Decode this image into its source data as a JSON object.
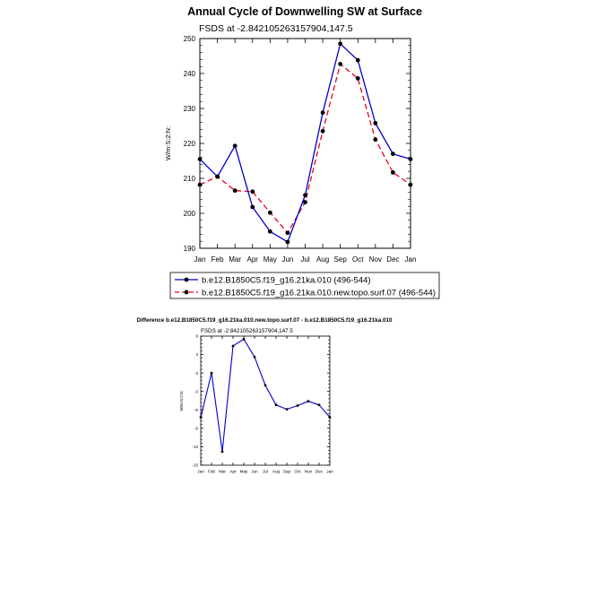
{
  "chart_data": [
    {
      "type": "line",
      "title": "Annual Cycle of Downwelling SW at Surface",
      "subtitle": "FSDS at -2.842105263157904,147.5",
      "ylabel": "W/m:S:2:N:",
      "xlabel": "",
      "categories": [
        "Jan",
        "Feb",
        "Mar",
        "Apr",
        "May",
        "Jun",
        "Jul",
        "Aug",
        "Sep",
        "Oct",
        "Nov",
        "Dec",
        "Jan"
      ],
      "ylim": [
        190,
        250
      ],
      "yticks": [
        190,
        200,
        210,
        220,
        230,
        240,
        250
      ],
      "grid": false,
      "legend_position": "bottom",
      "series": [
        {
          "name": "b.e12.B1850C5.f19_g16.21ka.010 (496-544)",
          "color": "#0000cc",
          "dash": "solid",
          "values": [
            215.5,
            210.5,
            219.3,
            201.8,
            194.8,
            191.8,
            205.2,
            228.8,
            248.5,
            243.8,
            225.8,
            217.0,
            215.5
          ]
        },
        {
          "name": "b.e12.B1850C5.f19_g16.21ka.010.new.topo.surf.07 (496-544)",
          "color": "#e8001c",
          "dash": "dashed",
          "values": [
            208.2,
            210.5,
            206.5,
            206.2,
            200.2,
            194.4,
            203.2,
            223.5,
            242.7,
            238.6,
            221.1,
            211.7,
            208.2
          ]
        }
      ]
    },
    {
      "type": "line",
      "title": "Difference b.e12.B1850C5.f19_g16.21ka.010.new.topo.surf.07 - b.e12.B1850C5.f19_g16.21ka.010",
      "subtitle": "FSDS at -2.842105263157904,147.5",
      "ylabel": "W/m:S:2:N:",
      "xlabel": "",
      "categories": [
        "Jan",
        "Feb",
        "Mar",
        "Apr",
        "May",
        "Jun",
        "Jul",
        "Aug",
        "Sep",
        "Oct",
        "Nov",
        "Dec",
        "Jan"
      ],
      "ylim": [
        -15,
        6
      ],
      "yticks": [
        -15,
        -12,
        -9,
        -6,
        -3,
        0,
        3,
        6
      ],
      "grid": false,
      "series": [
        {
          "color": "#0000cc",
          "dash": "solid",
          "values": [
            -7.2,
            0.0,
            -12.8,
            4.4,
            5.5,
            2.6,
            -2.0,
            -5.2,
            -5.9,
            -5.3,
            -4.6,
            -5.2,
            -7.2
          ]
        }
      ]
    }
  ]
}
